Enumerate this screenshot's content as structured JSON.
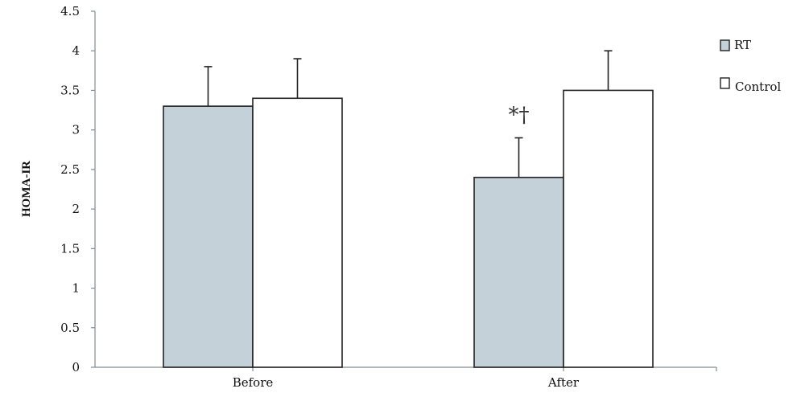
{
  "chart_data": {
    "type": "bar",
    "title": "",
    "xlabel": "",
    "ylabel": "HOMA-IR",
    "categories": [
      "Before",
      "After"
    ],
    "series": [
      {
        "name": "RT",
        "values": [
          3.3,
          2.4
        ],
        "error": [
          0.5,
          0.5
        ],
        "color": "#c5d1d8"
      },
      {
        "name": "Control",
        "values": [
          3.4,
          3.5
        ],
        "error": [
          0.5,
          0.5
        ],
        "color": "#ffffff"
      }
    ],
    "ylim": [
      0,
      4.5
    ],
    "yticks": [
      "0",
      "0.5",
      "1",
      "1.5",
      "2",
      "2.5",
      "3",
      "3.5",
      "4",
      "4.5"
    ],
    "grid": false,
    "legend_position": "right",
    "annotations": [
      {
        "text": "*†",
        "category": "After",
        "series": "RT"
      }
    ]
  }
}
